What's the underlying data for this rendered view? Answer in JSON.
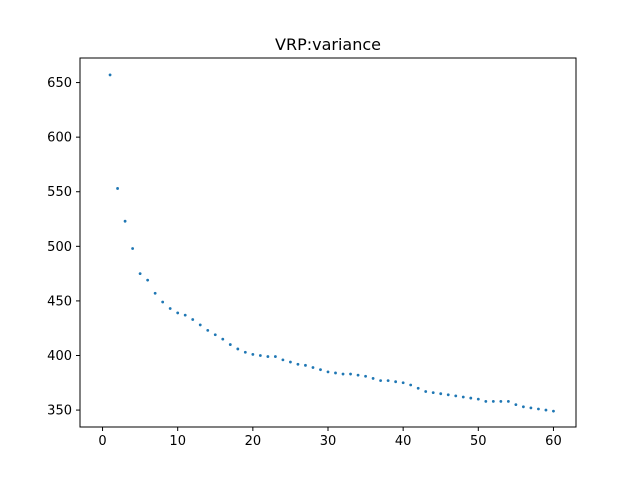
{
  "chart_data": {
    "type": "scatter",
    "title": "VRP:variance",
    "xlabel": "",
    "ylabel": "",
    "xlim": [
      -3.0,
      63.0
    ],
    "ylim": [
      334.5,
      672.5
    ],
    "x_ticks": [
      0,
      10,
      20,
      30,
      40,
      50,
      60
    ],
    "y_ticks": [
      350,
      400,
      450,
      500,
      550,
      600,
      650
    ],
    "grid": false,
    "legend": "none",
    "marker_color": "#1f77b4",
    "series": [
      {
        "x": [
          1,
          2,
          3,
          4,
          5,
          6,
          7,
          8,
          9,
          10,
          11,
          12,
          13,
          14,
          15,
          16,
          17,
          18,
          19,
          20,
          21,
          22,
          23,
          24,
          25,
          26,
          27,
          28,
          29,
          30,
          31,
          32,
          33,
          34,
          35,
          36,
          37,
          38,
          39,
          40,
          41,
          42,
          43,
          44,
          45,
          46,
          47,
          48,
          49,
          50,
          51,
          52,
          53,
          54,
          55,
          56,
          57,
          58,
          59,
          60
        ],
        "values": [
          657,
          553,
          523,
          498,
          475,
          469,
          457,
          449,
          443,
          439,
          437,
          433,
          428,
          423,
          419,
          415,
          410,
          406,
          403,
          401,
          400,
          399,
          399,
          396,
          394,
          392,
          391,
          389,
          387,
          385,
          384,
          383,
          383,
          382,
          381,
          379,
          377,
          377,
          376,
          375,
          373,
          370,
          367,
          366,
          365,
          364,
          363,
          362,
          361,
          360,
          358,
          358,
          358,
          358,
          355,
          353,
          352,
          351,
          350,
          349
        ]
      }
    ]
  }
}
